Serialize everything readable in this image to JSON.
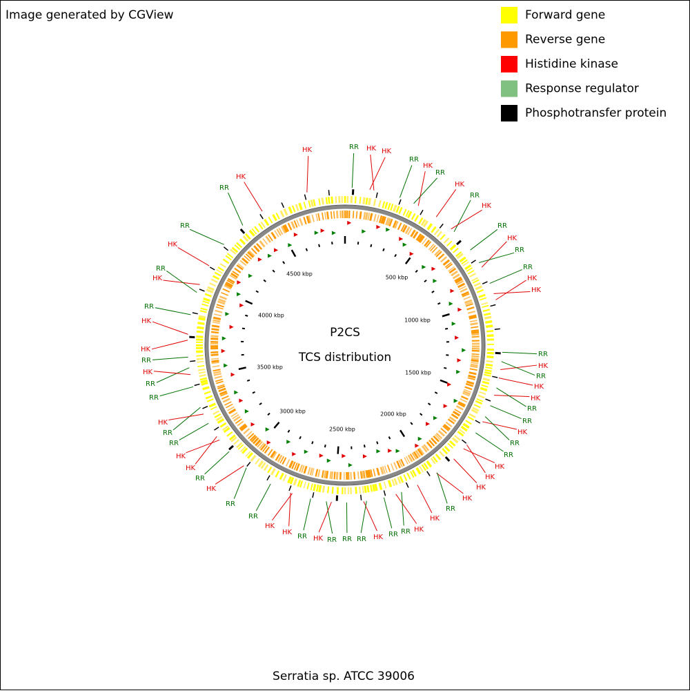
{
  "header": {
    "credit": "Image generated by CGView"
  },
  "legend": [
    {
      "label": "Forward gene",
      "color": "#ffff00"
    },
    {
      "label": "Reverse gene",
      "color": "#ff9900"
    },
    {
      "label": "Histidine kinase",
      "color": "#ff0000"
    },
    {
      "label": "Response regulator",
      "color": "#80c080"
    },
    {
      "label": "Phosphotransfer protein",
      "color": "#000000"
    }
  ],
  "map": {
    "title": "P2CS",
    "subtitle": "TCS distribution",
    "ruler": [
      "500 kbp",
      "1000 kbp",
      "1500 kbp",
      "2000 kbp",
      "2500 kbp",
      "3000 kbp",
      "3500 kbp",
      "4000 kbp",
      "4500 kbp"
    ],
    "label_colors": {
      "HK": "#e00000",
      "RR": "#007000"
    },
    "labels": [
      "HK",
      "RR",
      "HK",
      "HK",
      "RR",
      "HK",
      "RR",
      "HK",
      "RR",
      "HK",
      "RR",
      "HK",
      "RR",
      "RR",
      "HK",
      "HK",
      "RR",
      "HK",
      "RR",
      "HK",
      "HK",
      "RR",
      "RR",
      "HK",
      "RR",
      "RR",
      "HK",
      "HK",
      "HK",
      "HK",
      "RR",
      "HK",
      "HK",
      "RR",
      "RR",
      "HK",
      "RR",
      "RR",
      "RR",
      "HK",
      "RR",
      "HK",
      "HK",
      "RR",
      "RR",
      "HK",
      "RR",
      "HK",
      "HK",
      "RR",
      "RR",
      "HK",
      "RR",
      "RR",
      "HK",
      "RR",
      "HK",
      "HK",
      "RR",
      "HK",
      "RR",
      "HK",
      "RR",
      "RR",
      "HK"
    ]
  },
  "footer": {
    "organism": "Serratia sp. ATCC 39006"
  }
}
